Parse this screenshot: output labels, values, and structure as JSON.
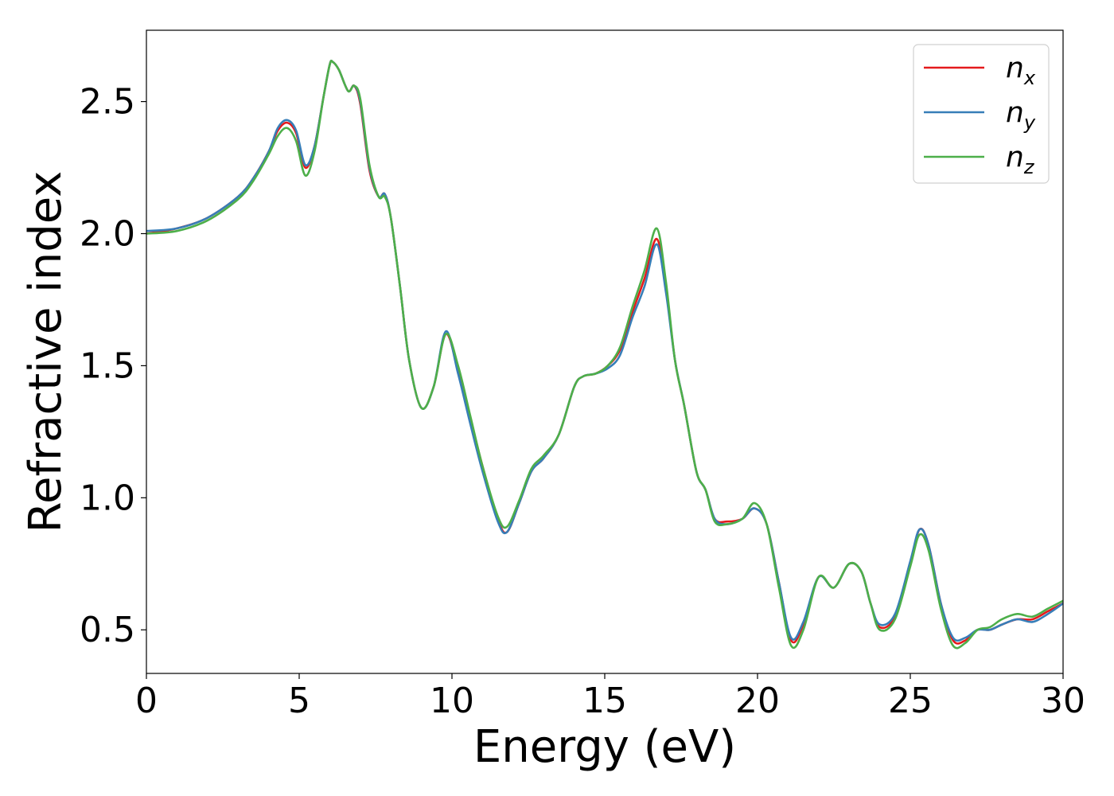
{
  "chart_data": {
    "type": "line",
    "xlabel": "Energy (eV)",
    "ylabel": "Refractive index",
    "xlim": [
      0,
      30
    ],
    "ylim": [
      0.335,
      2.77
    ],
    "xticks": [
      0,
      5,
      10,
      15,
      20,
      25,
      30
    ],
    "xtick_labels": [
      "0",
      "5",
      "10",
      "15",
      "20",
      "25",
      "30"
    ],
    "yticks": [
      0.5,
      1.0,
      1.5,
      2.0,
      2.5
    ],
    "ytick_labels": [
      "0.5",
      "1.0",
      "1.5",
      "2.0",
      "2.5"
    ],
    "grid": false,
    "legend_position": "top-right",
    "series": [
      {
        "name": "n_x",
        "legend_base": "n",
        "legend_sub": "x",
        "color": "#e41a1c",
        "x": [
          0,
          1,
          2,
          3,
          3.5,
          4,
          4.3,
          4.6,
          4.9,
          5.2,
          5.5,
          5.8,
          6.0,
          6.1,
          6.3,
          6.6,
          6.8,
          7.0,
          7.3,
          7.6,
          7.8,
          8.0,
          8.3,
          8.6,
          9.0,
          9.4,
          9.8,
          10.2,
          10.6,
          11.0,
          11.5,
          11.8,
          12.2,
          12.6,
          13.0,
          13.5,
          14.0,
          14.3,
          14.7,
          15.1,
          15.5,
          15.9,
          16.3,
          16.7,
          17.0,
          17.3,
          17.6,
          18.0,
          18.3,
          18.6,
          19.0,
          19.5,
          19.9,
          20.3,
          20.7,
          21.1,
          21.5,
          22.0,
          22.5,
          23.0,
          23.4,
          23.7,
          24.0,
          24.5,
          25.0,
          25.3,
          25.6,
          26.0,
          26.4,
          26.8,
          27.2,
          27.6,
          28.0,
          28.5,
          29.0,
          29.5,
          30
        ],
        "y": [
          2.0,
          2.02,
          2.06,
          2.14,
          2.21,
          2.31,
          2.39,
          2.42,
          2.38,
          2.25,
          2.33,
          2.52,
          2.64,
          2.65,
          2.62,
          2.54,
          2.56,
          2.49,
          2.24,
          2.14,
          2.15,
          2.06,
          1.8,
          1.52,
          1.34,
          1.42,
          1.62,
          1.48,
          1.3,
          1.12,
          0.92,
          0.87,
          0.98,
          1.1,
          1.15,
          1.24,
          1.42,
          1.46,
          1.47,
          1.5,
          1.56,
          1.7,
          1.83,
          1.98,
          1.8,
          1.52,
          1.35,
          1.1,
          1.03,
          0.92,
          0.91,
          0.92,
          0.96,
          0.9,
          0.68,
          0.46,
          0.52,
          0.7,
          0.66,
          0.75,
          0.72,
          0.6,
          0.51,
          0.55,
          0.75,
          0.88,
          0.82,
          0.6,
          0.46,
          0.46,
          0.5,
          0.5,
          0.52,
          0.54,
          0.54,
          0.57,
          0.6
        ]
      },
      {
        "name": "n_y",
        "legend_base": "n",
        "legend_sub": "y",
        "color": "#377eb8",
        "x": [
          0,
          1,
          2,
          3,
          3.5,
          4,
          4.3,
          4.6,
          4.9,
          5.2,
          5.5,
          5.8,
          6.0,
          6.1,
          6.3,
          6.6,
          6.8,
          7.0,
          7.3,
          7.6,
          7.8,
          8.0,
          8.3,
          8.6,
          9.0,
          9.4,
          9.8,
          10.2,
          10.6,
          11.0,
          11.5,
          11.8,
          12.2,
          12.6,
          13.0,
          13.5,
          14.0,
          14.3,
          14.7,
          15.1,
          15.5,
          15.9,
          16.3,
          16.7,
          17.0,
          17.3,
          17.6,
          18.0,
          18.3,
          18.6,
          19.0,
          19.5,
          19.9,
          20.3,
          20.7,
          21.1,
          21.5,
          22.0,
          22.5,
          23.0,
          23.4,
          23.7,
          24.0,
          24.5,
          25.0,
          25.3,
          25.6,
          26.0,
          26.4,
          26.8,
          27.2,
          27.6,
          28.0,
          28.5,
          29.0,
          29.5,
          30
        ],
        "y": [
          2.01,
          2.02,
          2.06,
          2.14,
          2.21,
          2.31,
          2.4,
          2.43,
          2.39,
          2.26,
          2.33,
          2.52,
          2.64,
          2.65,
          2.62,
          2.54,
          2.56,
          2.5,
          2.25,
          2.14,
          2.15,
          2.06,
          1.8,
          1.52,
          1.34,
          1.42,
          1.63,
          1.47,
          1.28,
          1.1,
          0.91,
          0.87,
          0.98,
          1.1,
          1.15,
          1.24,
          1.42,
          1.46,
          1.47,
          1.49,
          1.54,
          1.68,
          1.8,
          1.96,
          1.78,
          1.52,
          1.35,
          1.1,
          1.03,
          0.92,
          0.9,
          0.92,
          0.96,
          0.9,
          0.68,
          0.47,
          0.53,
          0.7,
          0.66,
          0.75,
          0.72,
          0.6,
          0.52,
          0.56,
          0.76,
          0.88,
          0.82,
          0.6,
          0.47,
          0.47,
          0.5,
          0.5,
          0.52,
          0.54,
          0.53,
          0.56,
          0.6
        ]
      },
      {
        "name": "n_z",
        "legend_base": "n",
        "legend_sub": "z",
        "color": "#4daf4a",
        "x": [
          0,
          1,
          2,
          3,
          3.5,
          4,
          4.3,
          4.6,
          4.9,
          5.2,
          5.5,
          5.8,
          6.0,
          6.1,
          6.3,
          6.6,
          6.8,
          7.0,
          7.3,
          7.6,
          7.8,
          8.0,
          8.3,
          8.6,
          9.0,
          9.4,
          9.8,
          10.2,
          10.6,
          11.0,
          11.5,
          11.8,
          12.2,
          12.6,
          13.0,
          13.5,
          14.0,
          14.3,
          14.7,
          15.1,
          15.5,
          15.9,
          16.3,
          16.7,
          17.0,
          17.3,
          17.6,
          18.0,
          18.3,
          18.6,
          19.0,
          19.5,
          19.9,
          20.3,
          20.7,
          21.1,
          21.5,
          22.0,
          22.5,
          23.0,
          23.4,
          23.7,
          24.0,
          24.5,
          25.0,
          25.3,
          25.6,
          26.0,
          26.4,
          26.8,
          27.2,
          27.6,
          28.0,
          28.5,
          29.0,
          29.5,
          30
        ],
        "y": [
          2.0,
          2.01,
          2.05,
          2.13,
          2.2,
          2.3,
          2.37,
          2.4,
          2.35,
          2.22,
          2.31,
          2.52,
          2.64,
          2.65,
          2.62,
          2.54,
          2.56,
          2.51,
          2.26,
          2.14,
          2.14,
          2.06,
          1.8,
          1.52,
          1.34,
          1.42,
          1.62,
          1.5,
          1.31,
          1.12,
          0.93,
          0.89,
          0.99,
          1.11,
          1.16,
          1.24,
          1.42,
          1.46,
          1.47,
          1.5,
          1.57,
          1.72,
          1.86,
          2.02,
          1.82,
          1.52,
          1.35,
          1.1,
          1.03,
          0.91,
          0.9,
          0.92,
          0.98,
          0.9,
          0.66,
          0.44,
          0.5,
          0.7,
          0.66,
          0.75,
          0.72,
          0.6,
          0.5,
          0.54,
          0.74,
          0.86,
          0.8,
          0.58,
          0.44,
          0.45,
          0.5,
          0.51,
          0.54,
          0.56,
          0.55,
          0.58,
          0.61
        ]
      }
    ]
  }
}
